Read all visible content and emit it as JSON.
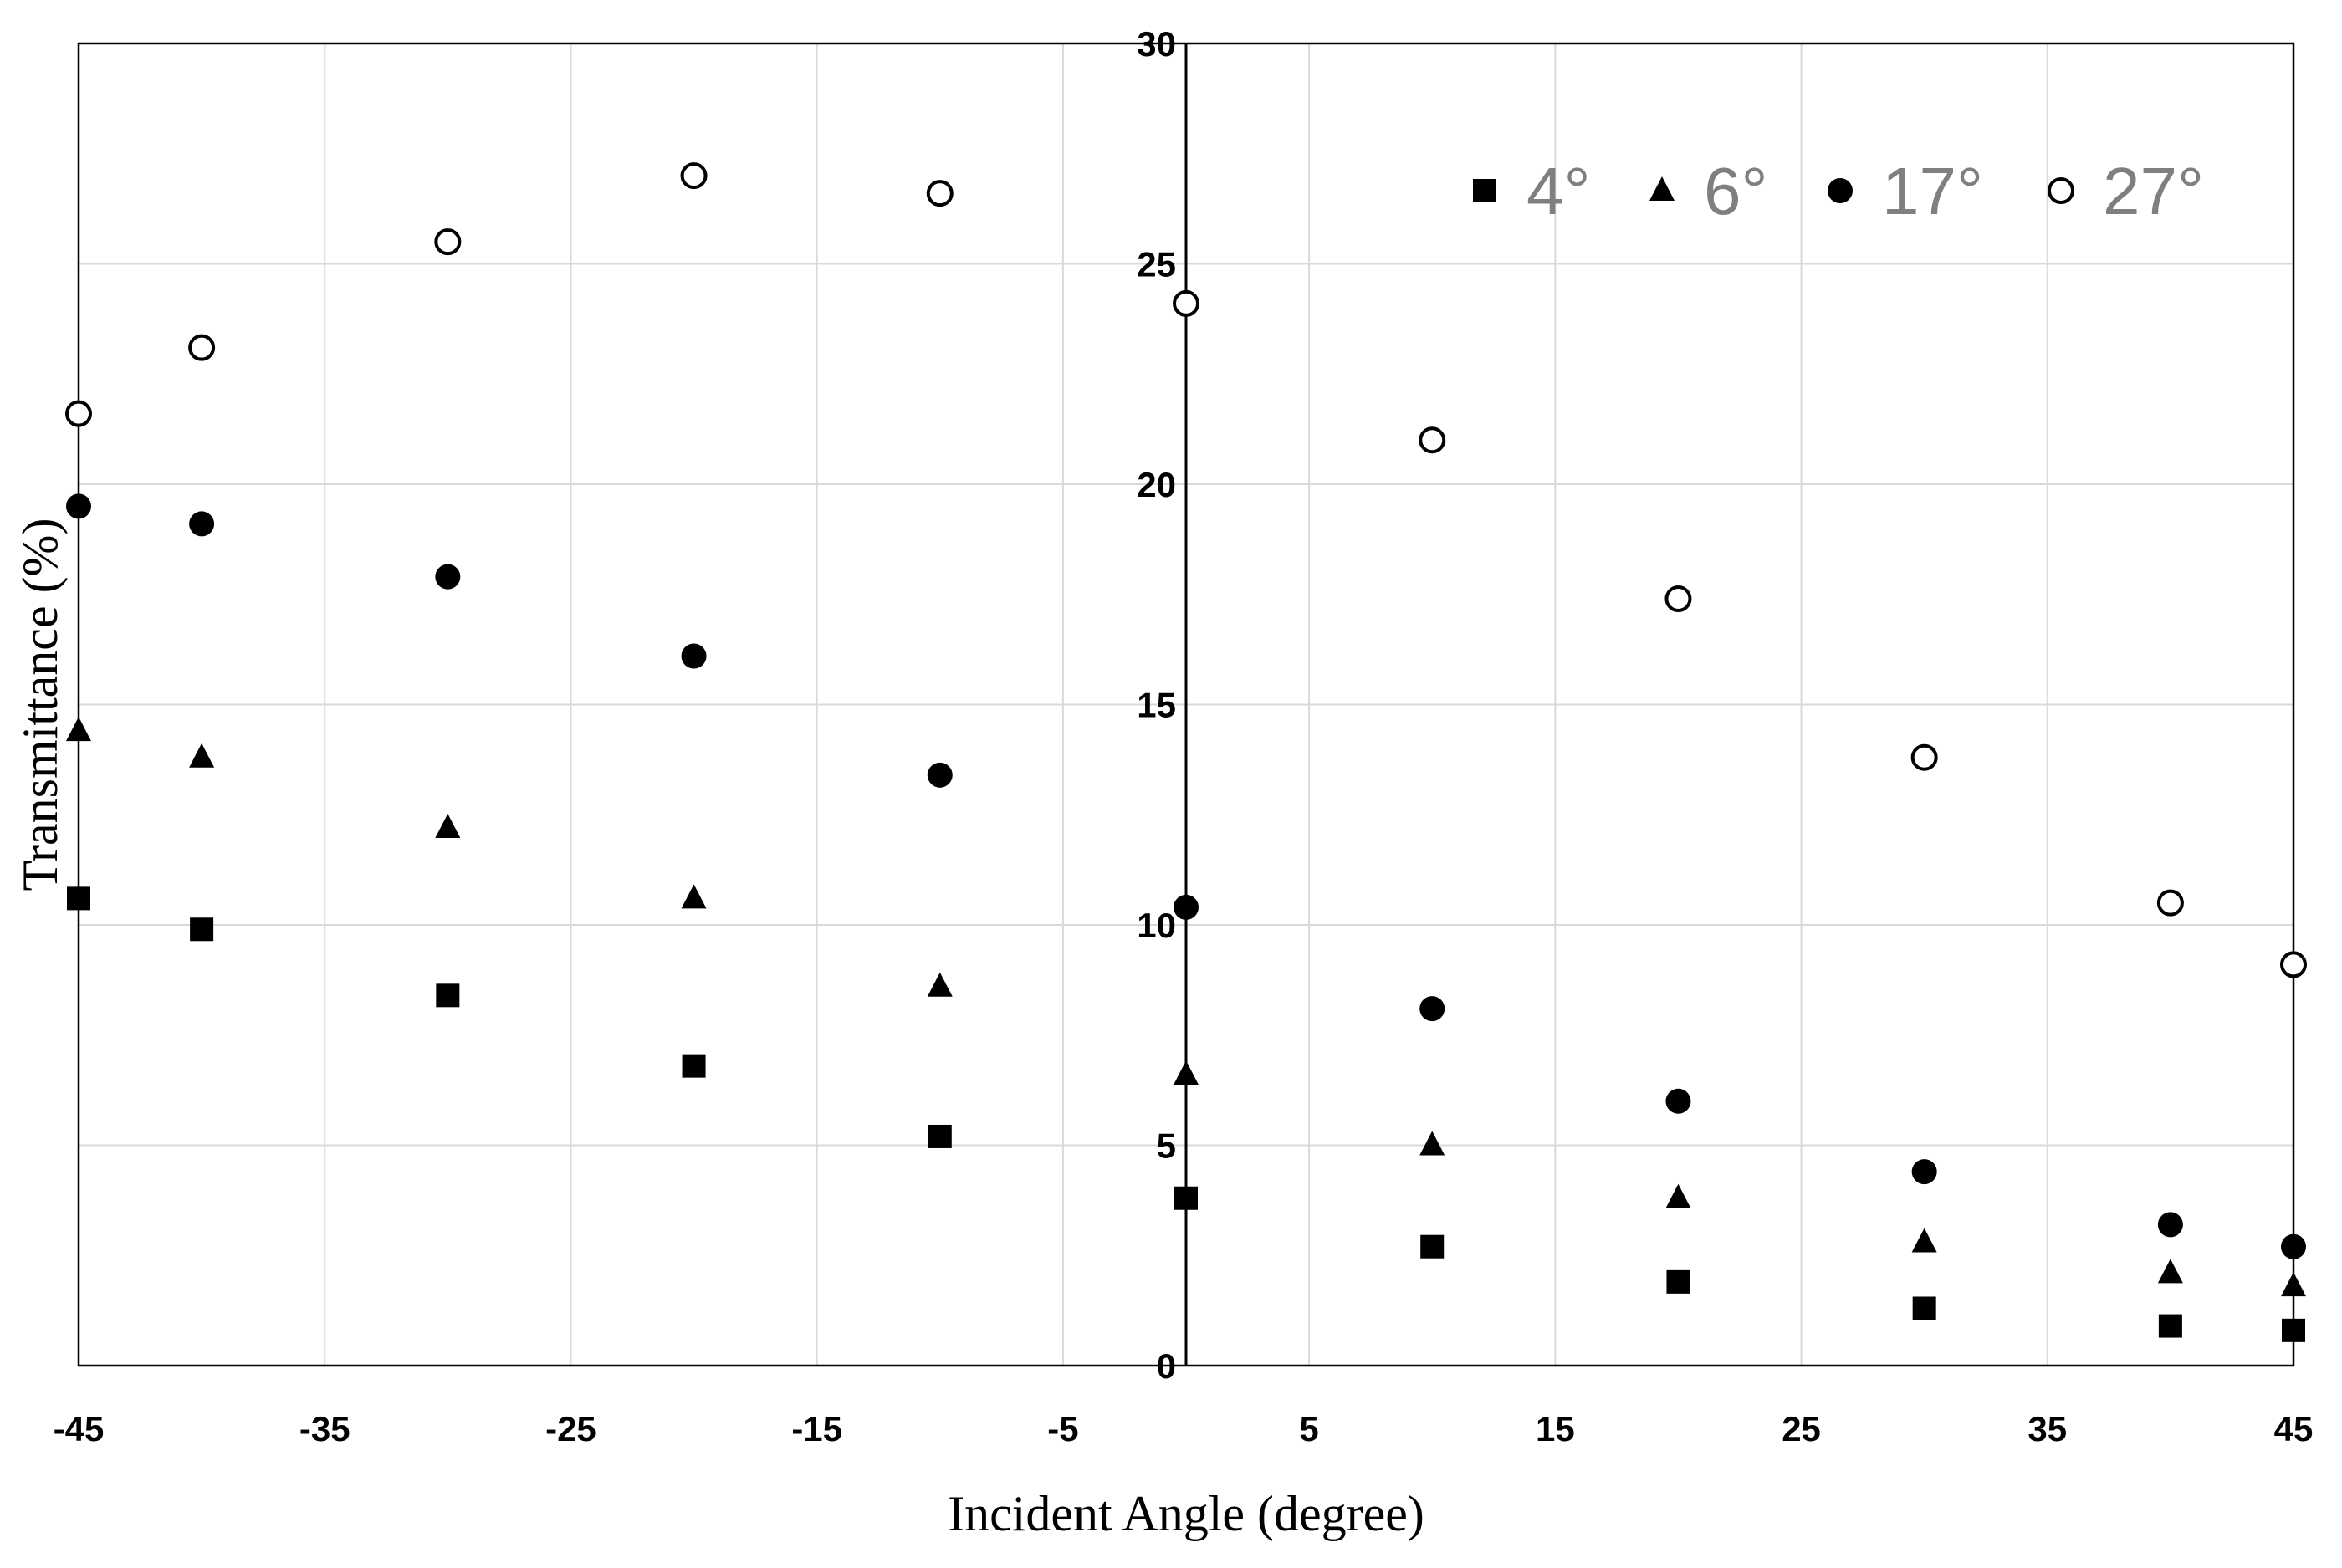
{
  "chart_data": {
    "type": "scatter",
    "title": "",
    "xlabel": "Incident Angle (degree)",
    "ylabel": "Transmittance (%)",
    "xlim": [
      -45,
      45
    ],
    "ylim": [
      0,
      30
    ],
    "x_ticks": [
      -45,
      -35,
      -25,
      -15,
      -5,
      5,
      15,
      25,
      35,
      45
    ],
    "x_tick_labels": [
      "-45",
      "-35",
      "-25",
      "-15",
      "-5",
      "5",
      "15",
      "25",
      "35",
      "45"
    ],
    "y_ticks": [
      0,
      5,
      10,
      15,
      20,
      25,
      30
    ],
    "y_tick_labels": [
      "0",
      "5",
      "10",
      "15",
      "20",
      "25",
      "30"
    ],
    "grid": true,
    "legend_position": "top-right",
    "x": [
      -45,
      -40,
      -30,
      -20,
      -10,
      0,
      10,
      20,
      30,
      40,
      45
    ],
    "series": [
      {
        "name": "4°",
        "marker": "square-filled",
        "values": [
          10.6,
          9.9,
          8.4,
          6.8,
          5.2,
          3.8,
          2.7,
          1.9,
          1.3,
          0.9,
          0.8
        ]
      },
      {
        "name": "6°",
        "marker": "triangle-filled",
        "values": [
          14.4,
          13.8,
          12.2,
          10.6,
          8.6,
          6.6,
          5.0,
          3.8,
          2.8,
          2.1,
          1.8
        ]
      },
      {
        "name": "17°",
        "marker": "circle-filled",
        "values": [
          19.5,
          19.1,
          17.9,
          16.1,
          13.4,
          10.4,
          8.1,
          6.0,
          4.4,
          3.2,
          2.7
        ]
      },
      {
        "name": "27°",
        "marker": "circle-open",
        "values": [
          21.6,
          23.1,
          25.5,
          27.0,
          26.6,
          24.1,
          21.0,
          17.4,
          13.8,
          10.5,
          9.1
        ]
      }
    ]
  }
}
